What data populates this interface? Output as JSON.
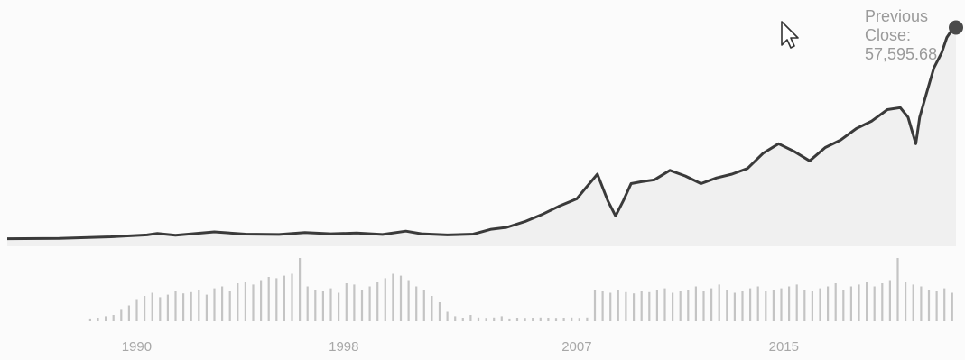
{
  "chart_data": {
    "type": "area",
    "title": "",
    "xlabel": "",
    "ylabel": "",
    "x_tick_labels": [
      "1990",
      "1998",
      "2007",
      "2015"
    ],
    "xlim": [
      1985,
      2022
    ],
    "ylim": [
      0,
      62000
    ],
    "grid": false,
    "legend": "none",
    "previous_close": {
      "label_line1": "Previous",
      "label_line2": "Close:",
      "value": "57,595.68"
    },
    "series": [
      {
        "x": [
          1985.0,
          1987.0,
          1989.0,
          1990.4,
          1990.8,
          1991.5,
          1993.0,
          1994.2,
          1995.5,
          1996.5,
          1997.5,
          1998.5,
          1999.5,
          2000.4,
          2001.0,
          2002.0,
          2003.0,
          2003.7,
          2004.3,
          2005.0,
          2005.7,
          2006.3,
          2007.0,
          2007.3,
          2007.8,
          2008.2,
          2008.5,
          2008.8,
          2009.1,
          2009.5,
          2010.0,
          2010.6,
          2011.2,
          2011.8,
          2012.4,
          2013.0,
          2013.6,
          2014.2,
          2014.8,
          2015.4,
          2016.0,
          2016.6,
          2017.2,
          2017.8,
          2018.4,
          2019.0,
          2019.5,
          2019.8,
          2020.1,
          2020.25,
          2020.5,
          2020.8,
          2021.1,
          2021.3,
          2021.5,
          2021.65
        ],
        "values": [
          2000,
          2100,
          2500,
          3000,
          3400,
          2900,
          3800,
          3200,
          3100,
          3600,
          3300,
          3500,
          3100,
          4000,
          3300,
          3000,
          3200,
          4500,
          5000,
          6500,
          8500,
          10500,
          12500,
          15000,
          19000,
          12000,
          8000,
          12000,
          16500,
          17000,
          17500,
          20000,
          18500,
          16500,
          18000,
          19000,
          20500,
          24500,
          27000,
          25000,
          22500,
          26000,
          28000,
          31000,
          33000,
          36000,
          36500,
          34000,
          27000,
          34000,
          40000,
          47000,
          51000,
          55000,
          57000,
          57595
        ]
      }
    ],
    "volume": {
      "x": [
        1988.2,
        1988.5,
        1988.8,
        1989.1,
        1989.4,
        1989.7,
        1990.0,
        1990.3,
        1990.6,
        1990.9,
        1991.2,
        1991.5,
        1991.8,
        1992.1,
        1992.4,
        1992.7,
        1993.0,
        1993.3,
        1993.6,
        1993.9,
        1994.2,
        1994.5,
        1994.8,
        1995.1,
        1995.4,
        1995.7,
        1996.0,
        1996.3,
        1996.6,
        1996.9,
        1997.2,
        1997.5,
        1997.8,
        1998.1,
        1998.4,
        1998.7,
        1999.0,
        1999.3,
        1999.6,
        1999.9,
        2000.2,
        2000.5,
        2000.8,
        2001.1,
        2001.4,
        2001.7,
        2002.0,
        2002.3,
        2002.6,
        2002.9,
        2003.2,
        2003.5,
        2003.8,
        2004.1,
        2004.4,
        2004.7,
        2005.0,
        2005.3,
        2005.6,
        2005.9,
        2006.2,
        2006.5,
        2006.8,
        2007.1,
        2007.4,
        2007.7,
        2008.0,
        2008.3,
        2008.6,
        2008.9,
        2009.2,
        2009.5,
        2009.8,
        2010.1,
        2010.4,
        2010.7,
        2011.0,
        2011.3,
        2011.6,
        2011.9,
        2012.2,
        2012.5,
        2012.8,
        2013.1,
        2013.4,
        2013.7,
        2014.0,
        2014.3,
        2014.6,
        2014.9,
        2015.2,
        2015.5,
        2015.8,
        2016.1,
        2016.4,
        2016.7,
        2017.0,
        2017.3,
        2017.6,
        2017.9,
        2018.2,
        2018.5,
        2018.8,
        2019.1,
        2019.4,
        2019.7,
        2020.0,
        2020.3,
        2020.6,
        2020.9,
        2021.2,
        2021.5
      ],
      "values": [
        3,
        5,
        8,
        10,
        18,
        25,
        35,
        40,
        45,
        38,
        42,
        48,
        44,
        46,
        50,
        42,
        52,
        55,
        48,
        60,
        62,
        58,
        65,
        70,
        68,
        72,
        75,
        100,
        55,
        50,
        48,
        52,
        45,
        60,
        58,
        50,
        55,
        62,
        68,
        75,
        72,
        65,
        55,
        50,
        40,
        30,
        15,
        8,
        5,
        10,
        6,
        4,
        6,
        8,
        3,
        5,
        4,
        5,
        6,
        5,
        4,
        5,
        6,
        4,
        6,
        50,
        48,
        45,
        50,
        46,
        44,
        48,
        46,
        50,
        52,
        45,
        48,
        50,
        55,
        48,
        52,
        58,
        50,
        45,
        48,
        52,
        55,
        48,
        50,
        52,
        55,
        58,
        50,
        48,
        52,
        55,
        60,
        50,
        55,
        58,
        62,
        55,
        60,
        65,
        100,
        62,
        58,
        55,
        50,
        48,
        52,
        45
      ]
    },
    "colors": {
      "line": "#3a3a3a",
      "area_fill": "#f0f0f0",
      "volume_bar": "#c4c4c4",
      "marker": "#4a4a4a",
      "tick_text": "#a7a7a7",
      "prev_close_text": "#9a9a9a",
      "background": "#fbfbfb"
    }
  }
}
